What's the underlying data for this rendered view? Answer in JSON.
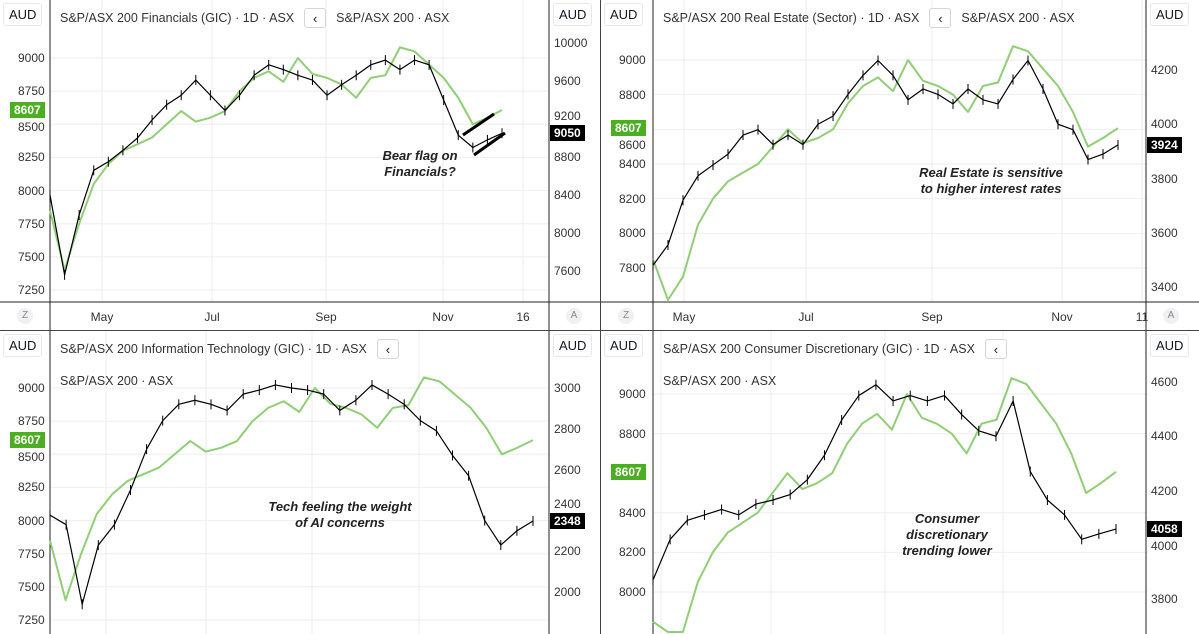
{
  "colors": {
    "sector_line": "#000000",
    "asx200_line": "#8fcf75",
    "left_badge": "#4caf22",
    "right_badge": "#000000"
  },
  "chart_data": [
    {
      "type": "line",
      "currency_left": "AUD",
      "currency_right": "AUD",
      "title": "S&P/ASX 200 Financials (GIC) · 1D · ASX",
      "compare_label": "S&P/ASX 200 · ASX",
      "back_icon": "chevron-left-icon",
      "left_ticks": [
        "9000",
        "8750",
        "8500",
        "8250",
        "8000",
        "7750",
        "7500",
        "7250"
      ],
      "right_ticks": [
        "10000",
        "9600",
        "9200",
        "8800",
        "8400",
        "8000",
        "7600"
      ],
      "x_ticks": [
        "May",
        "Jul",
        "Sep",
        "Nov",
        "16"
      ],
      "left_badge": "8607",
      "right_badge": "9050",
      "z_label": "Z",
      "a_label": "A",
      "annotation": [
        "Bear flag on",
        "Financials?"
      ],
      "series": [
        {
          "name": "S&P/ASX 200 Financials (GIC)",
          "axis": "right",
          "values": [
            8400,
            7560,
            8190,
            8660,
            8750,
            8870,
            9000,
            9190,
            9350,
            9450,
            9610,
            9450,
            9290,
            9450,
            9660,
            9770,
            9720,
            9660,
            9610,
            9450,
            9560,
            9660,
            9770,
            9820,
            9720,
            9820,
            9770,
            9400,
            9030,
            8900,
            8980,
            9050
          ]
        }
      ]
    },
    {
      "type": "line",
      "currency_left": "AUD",
      "currency_right": "AUD",
      "title": "S&P/ASX 200 Real Estate (Sector) · 1D · ASX",
      "compare_label": "S&P/ASX 200 · ASX",
      "back_icon": "chevron-left-icon",
      "left_ticks": [
        "9000",
        "8800",
        "8600",
        "8400",
        "8200",
        "8000",
        "7800"
      ],
      "right_ticks": [
        "4200",
        "4000",
        "3800",
        "3600",
        "3400"
      ],
      "x_ticks": [
        "May",
        "Jul",
        "Sep",
        "Nov",
        "11"
      ],
      "left_badge": "8607",
      "right_badge": "3924",
      "z_label": "Z",
      "a_label": "A",
      "annotation": [
        "Real Estate is sensitive",
        "to higher interest rates"
      ],
      "series": [
        {
          "name": "S&P/ASX 200 Real Estate (Sector)",
          "axis": "right",
          "values": [
            3480,
            3555,
            3720,
            3810,
            3850,
            3890,
            3960,
            3980,
            3925,
            3960,
            3925,
            4000,
            4030,
            4110,
            4180,
            4235,
            4180,
            4090,
            4130,
            4110,
            4075,
            4130,
            4090,
            4075,
            4165,
            4235,
            4130,
            4000,
            3980,
            3870,
            3890,
            3924
          ]
        }
      ]
    },
    {
      "type": "line",
      "currency_left": "AUD",
      "currency_right": "AUD",
      "title": "S&P/ASX 200 Information Technology (GIC) · 1D · ASX",
      "compare_label": "S&P/ASX 200 · ASX",
      "back_icon": "chevron-left-icon",
      "left_ticks": [
        "9000",
        "8750",
        "8500",
        "8250",
        "8000",
        "7750",
        "7500",
        "7250"
      ],
      "right_ticks": [
        "3000",
        "2800",
        "2600",
        "2400",
        "2200",
        "2000"
      ],
      "left_badge": "8607",
      "right_badge": "2348",
      "annotation": [
        "Tech feeling the weight",
        "of AI concerns"
      ],
      "series": [
        {
          "name": "S&P/ASX 200 Information Technology (GIC)",
          "axis": "right",
          "values": [
            2377,
            2330,
            1940,
            2230,
            2330,
            2500,
            2700,
            2840,
            2920,
            2940,
            2920,
            2890,
            2970,
            2990,
            3015,
            3000,
            2990,
            2970,
            2890,
            2940,
            3015,
            2970,
            2920,
            2840,
            2790,
            2670,
            2570,
            2350,
            2230,
            2300,
            2348
          ]
        }
      ]
    },
    {
      "type": "line",
      "currency_left": "AUD",
      "currency_right": "AUD",
      "title": "S&P/ASX 200 Consumer Discretionary (GIC) · 1D · ASX",
      "compare_label": "S&P/ASX 200 · ASX",
      "back_icon": "chevron-left-icon",
      "left_ticks": [
        "9000",
        "8800",
        "8400",
        "8200",
        "8000"
      ],
      "right_ticks": [
        "4600",
        "4400",
        "4200",
        "4000",
        "3800"
      ],
      "left_badge": "8607",
      "right_badge": "4058",
      "annotation": [
        "Consumer",
        "discretionary",
        "trending lower"
      ],
      "series": [
        {
          "name": "S&P/ASX 200 Consumer Discretionary (GIC)",
          "axis": "right",
          "values": [
            3870,
            4020,
            4090,
            4110,
            4130,
            4110,
            4150,
            4165,
            4185,
            4240,
            4330,
            4460,
            4550,
            4590,
            4530,
            4550,
            4530,
            4550,
            4480,
            4420,
            4400,
            4530,
            4270,
            4165,
            4110,
            4020,
            4040,
            4058
          ]
        }
      ]
    }
  ],
  "asx200": {
    "name": "S&P/ASX 200",
    "axis": "left",
    "values": [
      7850,
      7400,
      7750,
      8050,
      8200,
      8300,
      8350,
      8400,
      8500,
      8600,
      8520,
      8550,
      8600,
      8750,
      8850,
      8900,
      8820,
      9000,
      8880,
      8850,
      8800,
      8700,
      8850,
      8870,
      9080,
      9050,
      8950,
      8850,
      8700,
      8500,
      8550,
      8607
    ]
  }
}
